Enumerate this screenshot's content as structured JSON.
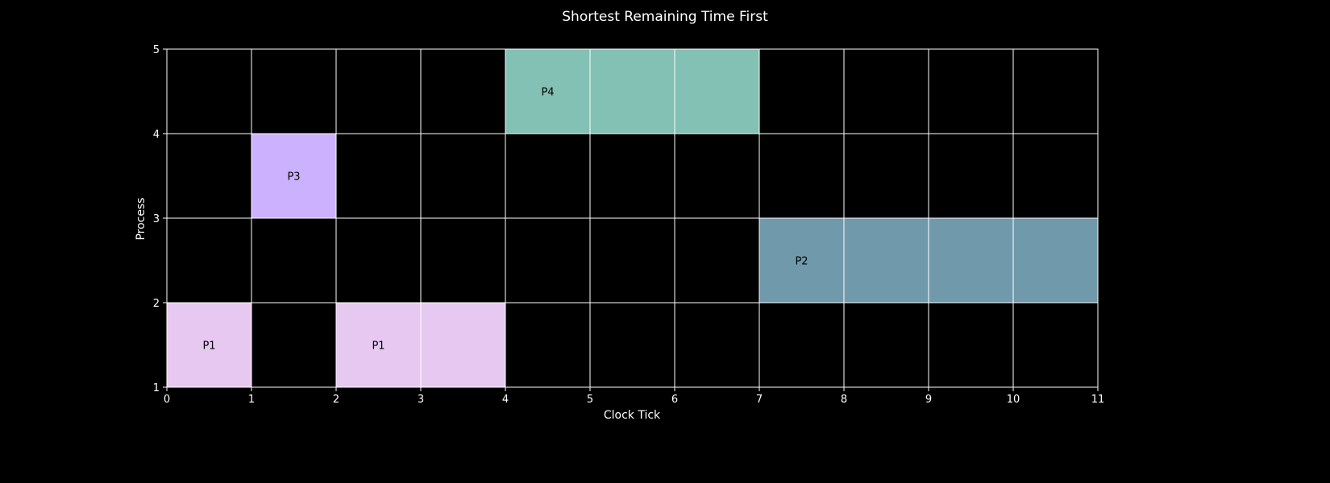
{
  "chart_data": {
    "type": "bar",
    "orientation": "gantt",
    "title": "Shortest Remaining Time First",
    "xlabel": "Clock Tick",
    "ylabel": "Process",
    "xlim": [
      0,
      11
    ],
    "ylim": [
      1,
      5
    ],
    "xticks": [
      "0",
      "1",
      "2",
      "3",
      "4",
      "5",
      "6",
      "7",
      "8",
      "9",
      "10",
      "11"
    ],
    "yticks": [
      "1",
      "2",
      "3",
      "4",
      "5"
    ],
    "grid": true,
    "background": "#000000",
    "segments": [
      {
        "process": "P1",
        "start": 0,
        "end": 1,
        "y_low": 1,
        "y_high": 2,
        "color": "#e6c8f1"
      },
      {
        "process": "P3",
        "start": 1,
        "end": 2,
        "y_low": 3,
        "y_high": 4,
        "color": "#ccb1fe"
      },
      {
        "process": "P1",
        "start": 2,
        "end": 4,
        "y_low": 1,
        "y_high": 2,
        "color": "#e6c8f1"
      },
      {
        "process": "P4",
        "start": 4,
        "end": 7,
        "y_low": 4,
        "y_high": 5,
        "color": "#82c1b4"
      },
      {
        "process": "P2",
        "start": 7,
        "end": 11,
        "y_low": 2,
        "y_high": 3,
        "color": "#709aac"
      }
    ]
  }
}
